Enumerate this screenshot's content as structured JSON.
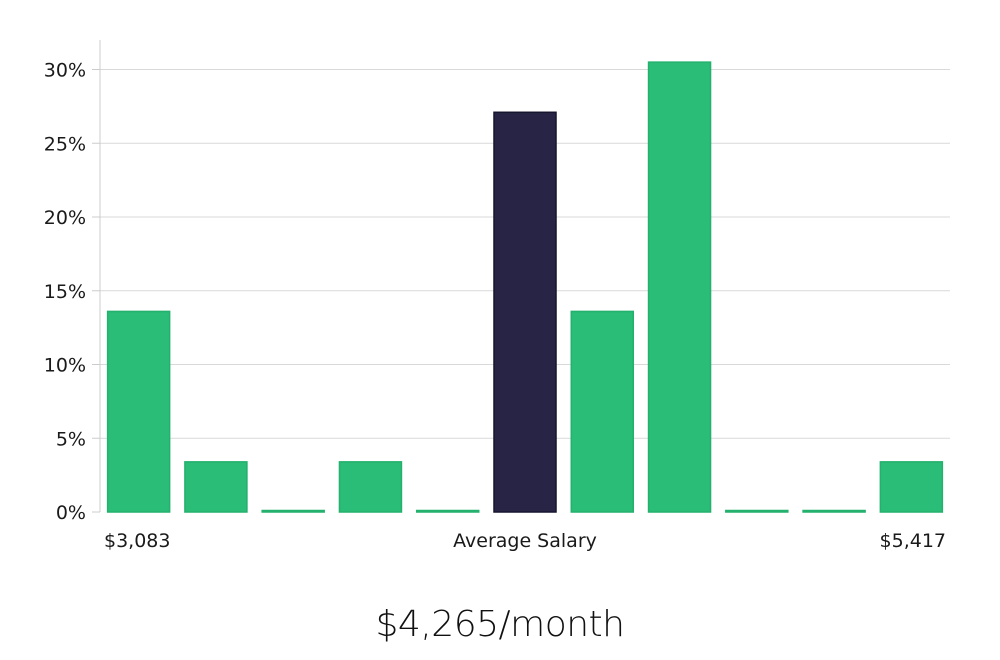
{
  "chart_data": {
    "type": "bar",
    "categories": [
      "",
      "",
      "",
      "",
      "",
      "",
      "",
      "",
      "",
      "",
      ""
    ],
    "values": [
      13.6,
      3.4,
      0,
      3.4,
      0,
      27.1,
      13.6,
      30.5,
      0,
      0,
      3.4
    ],
    "highlight_index": 5,
    "ylim": [
      0,
      32
    ],
    "yticks": [
      0,
      5,
      10,
      15,
      20,
      25,
      30
    ],
    "ytick_labels": [
      "0%",
      "5%",
      "10%",
      "15%",
      "20%",
      "25%",
      "30%"
    ],
    "x_labels": {
      "left": "$3,083",
      "center": "Average Salary",
      "right": "$5,417"
    },
    "grid": true,
    "colors": {
      "bar": "#2abd77",
      "highlight": "#272446",
      "grid": "#d9d9d9",
      "axis": "#cccccc"
    }
  },
  "headline": "$4,265/month"
}
